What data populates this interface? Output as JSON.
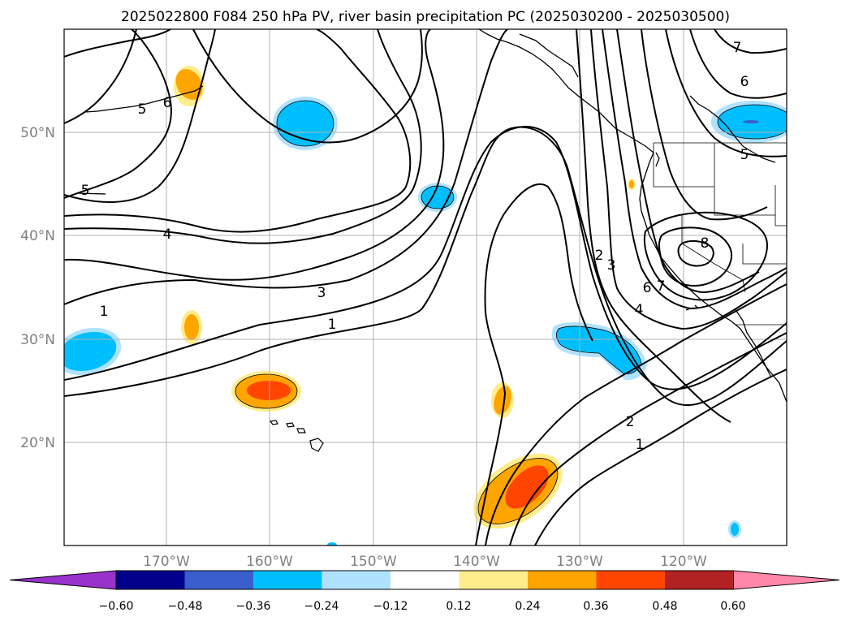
{
  "title": "2025022800 F084 250 hPa PV, river basin precipitation PC (2025030200 - 2025030500)",
  "map": {
    "lon_range": [
      -180,
      -110
    ],
    "lat_range": [
      10,
      60
    ],
    "grid": true,
    "lat_ticks": [
      "20°N",
      "30°N",
      "40°N",
      "50°N"
    ],
    "lon_ticks": [
      "170°W",
      "160°W",
      "150°W",
      "140°W",
      "130°W",
      "120°W"
    ]
  },
  "contour_labels": [
    "5",
    "6",
    "5",
    "4",
    "1",
    "3",
    "1",
    "2",
    "1",
    "2",
    "3",
    "4",
    "6",
    "7",
    "8",
    "6",
    "5",
    "7"
  ],
  "colorbar": {
    "colors": [
      "#9932cc",
      "#00008b",
      "#3a5fcd",
      "#00bfff",
      "#b0e2ff",
      "#ffffff",
      "#ffec8b",
      "#ffa500",
      "#ff4500",
      "#b22222",
      "#ff88aa"
    ],
    "ticks": [
      "−0.60",
      "−0.48",
      "−0.36",
      "−0.24",
      "−0.12",
      "0.12",
      "0.24",
      "0.36",
      "0.48",
      "0.60"
    ]
  }
}
